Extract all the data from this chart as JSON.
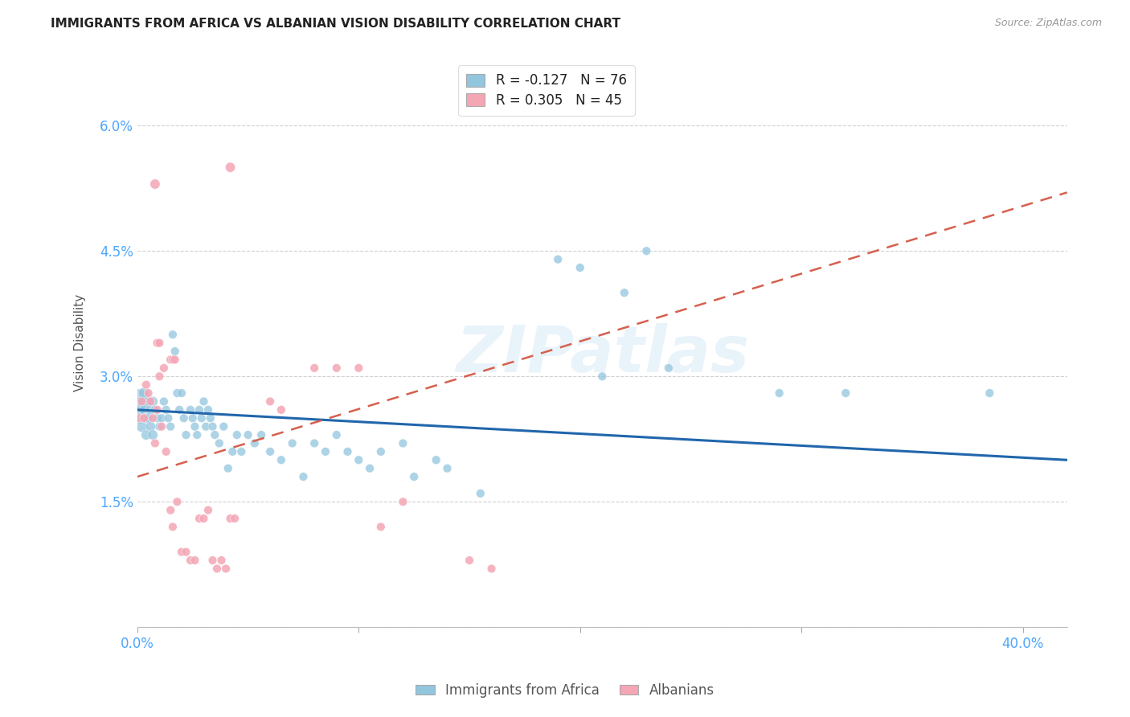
{
  "title": "IMMIGRANTS FROM AFRICA VS ALBANIAN VISION DISABILITY CORRELATION CHART",
  "source": "Source: ZipAtlas.com",
  "ylabel": "Vision Disability",
  "ytick_labels": [
    "",
    "1.5%",
    "3.0%",
    "4.5%",
    "6.0%"
  ],
  "yticks": [
    0.0,
    0.015,
    0.03,
    0.045,
    0.06
  ],
  "xticks": [
    0.0,
    0.1,
    0.2,
    0.3,
    0.4
  ],
  "xlim": [
    0.0,
    0.42
  ],
  "ylim": [
    0.0,
    0.068
  ],
  "legend_r1": "R = -0.127   N = 76",
  "legend_r2": "R = 0.305   N = 45",
  "legend_label1": "Immigrants from Africa",
  "legend_label2": "Albanians",
  "color_blue": "#92c5de",
  "color_pink": "#f4a6b5",
  "trendline_blue_color": "#2166ac",
  "trendline_pink_color": "#d6604d",
  "background_color": "#ffffff",
  "watermark": "ZIPatlas",
  "blue_scatter": [
    [
      0.0005,
      0.027
    ],
    [
      0.001,
      0.026
    ],
    [
      0.001,
      0.025
    ],
    [
      0.002,
      0.027
    ],
    [
      0.002,
      0.024
    ],
    [
      0.003,
      0.028
    ],
    [
      0.003,
      0.026
    ],
    [
      0.004,
      0.025
    ],
    [
      0.004,
      0.023
    ],
    [
      0.005,
      0.027
    ],
    [
      0.005,
      0.025
    ],
    [
      0.006,
      0.026
    ],
    [
      0.006,
      0.024
    ],
    [
      0.007,
      0.027
    ],
    [
      0.007,
      0.023
    ],
    [
      0.008,
      0.026
    ],
    [
      0.009,
      0.025
    ],
    [
      0.01,
      0.024
    ],
    [
      0.011,
      0.025
    ],
    [
      0.012,
      0.027
    ],
    [
      0.013,
      0.026
    ],
    [
      0.014,
      0.025
    ],
    [
      0.015,
      0.024
    ],
    [
      0.016,
      0.035
    ],
    [
      0.017,
      0.033
    ],
    [
      0.018,
      0.028
    ],
    [
      0.019,
      0.026
    ],
    [
      0.02,
      0.028
    ],
    [
      0.021,
      0.025
    ],
    [
      0.022,
      0.023
    ],
    [
      0.024,
      0.026
    ],
    [
      0.025,
      0.025
    ],
    [
      0.026,
      0.024
    ],
    [
      0.027,
      0.023
    ],
    [
      0.028,
      0.026
    ],
    [
      0.029,
      0.025
    ],
    [
      0.03,
      0.027
    ],
    [
      0.031,
      0.024
    ],
    [
      0.032,
      0.026
    ],
    [
      0.033,
      0.025
    ],
    [
      0.034,
      0.024
    ],
    [
      0.035,
      0.023
    ],
    [
      0.037,
      0.022
    ],
    [
      0.039,
      0.024
    ],
    [
      0.041,
      0.019
    ],
    [
      0.043,
      0.021
    ],
    [
      0.045,
      0.023
    ],
    [
      0.047,
      0.021
    ],
    [
      0.05,
      0.023
    ],
    [
      0.053,
      0.022
    ],
    [
      0.056,
      0.023
    ],
    [
      0.06,
      0.021
    ],
    [
      0.065,
      0.02
    ],
    [
      0.07,
      0.022
    ],
    [
      0.075,
      0.018
    ],
    [
      0.08,
      0.022
    ],
    [
      0.085,
      0.021
    ],
    [
      0.09,
      0.023
    ],
    [
      0.095,
      0.021
    ],
    [
      0.1,
      0.02
    ],
    [
      0.105,
      0.019
    ],
    [
      0.11,
      0.021
    ],
    [
      0.12,
      0.022
    ],
    [
      0.125,
      0.018
    ],
    [
      0.135,
      0.02
    ],
    [
      0.14,
      0.019
    ],
    [
      0.155,
      0.016
    ],
    [
      0.19,
      0.044
    ],
    [
      0.2,
      0.043
    ],
    [
      0.21,
      0.03
    ],
    [
      0.22,
      0.04
    ],
    [
      0.23,
      0.045
    ],
    [
      0.24,
      0.031
    ],
    [
      0.29,
      0.028
    ],
    [
      0.32,
      0.028
    ],
    [
      0.385,
      0.028
    ]
  ],
  "blue_sizes": [
    500,
    100,
    100,
    100,
    100,
    100,
    80,
    80,
    80,
    80,
    80,
    80,
    80,
    80,
    80,
    60,
    60,
    60,
    60,
    60,
    60,
    60,
    60,
    60,
    60,
    60,
    60,
    60,
    60,
    60,
    60,
    60,
    60,
    60,
    60,
    60,
    60,
    60,
    60,
    60,
    60,
    60,
    60,
    60,
    60,
    60,
    60,
    60,
    60,
    60,
    60,
    60,
    60,
    60,
    60,
    60,
    60,
    60,
    60,
    60,
    60,
    60,
    60,
    60,
    60,
    60,
    60,
    60,
    60,
    60,
    60,
    60,
    60,
    60,
    60,
    60
  ],
  "pink_scatter": [
    [
      0.001,
      0.025
    ],
    [
      0.002,
      0.027
    ],
    [
      0.003,
      0.025
    ],
    [
      0.004,
      0.029
    ],
    [
      0.005,
      0.028
    ],
    [
      0.006,
      0.027
    ],
    [
      0.007,
      0.025
    ],
    [
      0.008,
      0.022
    ],
    [
      0.009,
      0.026
    ],
    [
      0.01,
      0.03
    ],
    [
      0.011,
      0.024
    ],
    [
      0.012,
      0.031
    ],
    [
      0.013,
      0.021
    ],
    [
      0.015,
      0.014
    ],
    [
      0.016,
      0.012
    ],
    [
      0.018,
      0.015
    ],
    [
      0.02,
      0.009
    ],
    [
      0.022,
      0.009
    ],
    [
      0.024,
      0.008
    ],
    [
      0.026,
      0.008
    ],
    [
      0.028,
      0.013
    ],
    [
      0.03,
      0.013
    ],
    [
      0.032,
      0.014
    ],
    [
      0.034,
      0.008
    ],
    [
      0.036,
      0.007
    ],
    [
      0.038,
      0.008
    ],
    [
      0.04,
      0.007
    ],
    [
      0.042,
      0.013
    ],
    [
      0.044,
      0.013
    ],
    [
      0.06,
      0.027
    ],
    [
      0.065,
      0.026
    ],
    [
      0.08,
      0.031
    ],
    [
      0.09,
      0.031
    ],
    [
      0.1,
      0.031
    ],
    [
      0.11,
      0.012
    ],
    [
      0.12,
      0.015
    ],
    [
      0.15,
      0.008
    ],
    [
      0.16,
      0.007
    ],
    [
      0.042,
      0.055
    ],
    [
      0.008,
      0.053
    ],
    [
      0.009,
      0.034
    ],
    [
      0.01,
      0.034
    ],
    [
      0.015,
      0.032
    ],
    [
      0.016,
      0.032
    ],
    [
      0.017,
      0.032
    ]
  ],
  "pink_sizes": [
    60,
    60,
    60,
    60,
    60,
    60,
    60,
    60,
    60,
    60,
    60,
    60,
    60,
    60,
    60,
    60,
    60,
    60,
    60,
    60,
    60,
    60,
    60,
    60,
    60,
    60,
    60,
    60,
    60,
    60,
    60,
    60,
    60,
    60,
    60,
    60,
    60,
    60,
    80,
    80,
    60,
    60,
    60,
    60,
    60
  ],
  "blue_trend_x": [
    0.0,
    0.42
  ],
  "blue_trend_y": [
    0.026,
    0.02
  ],
  "pink_trend_x": [
    0.0,
    0.42
  ],
  "pink_trend_y": [
    0.018,
    0.052
  ]
}
